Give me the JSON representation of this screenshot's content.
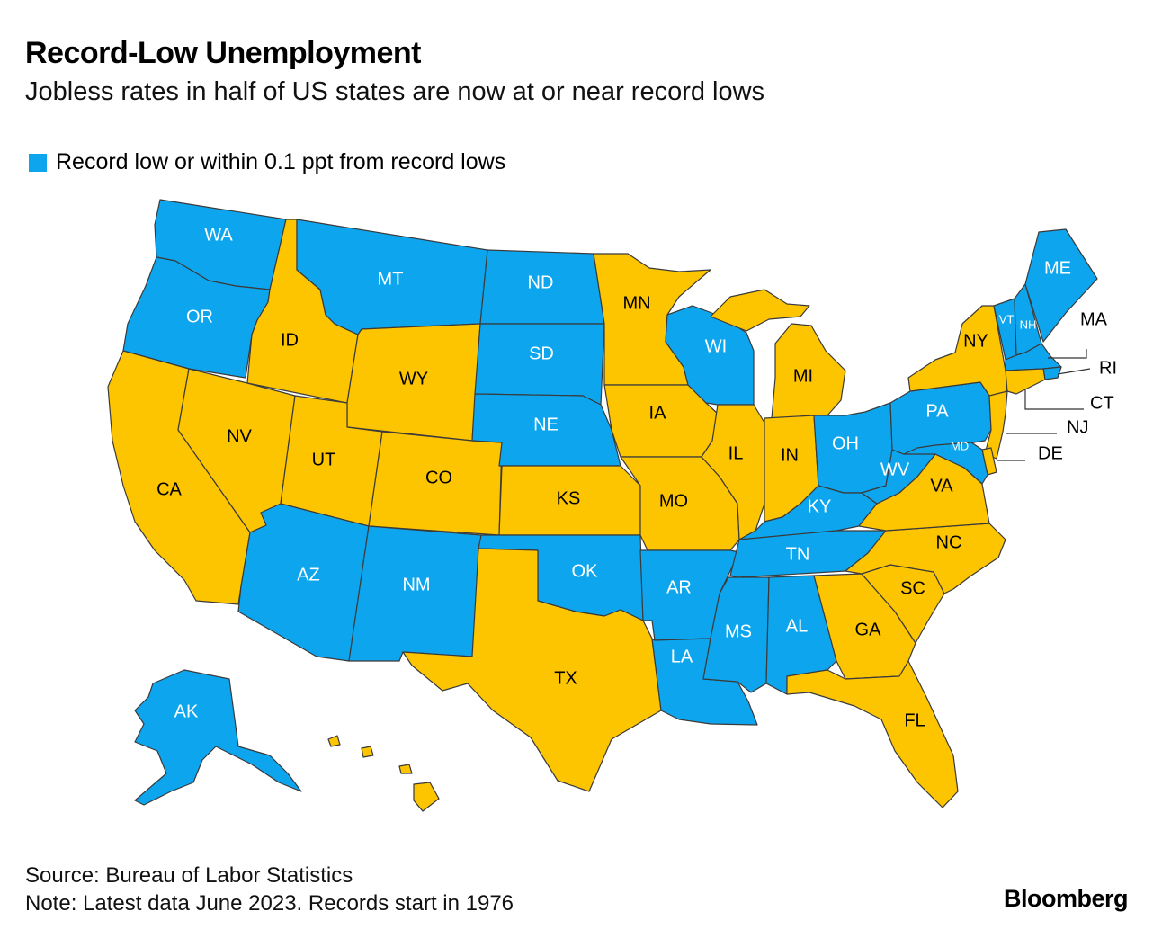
{
  "title": "Record-Low Unemployment",
  "subtitle": "Jobless rates in half of US states are now at or near record lows",
  "legend": {
    "label": "Record low or within 0.1 ppt from record lows"
  },
  "colors": {
    "record_low": "#0DA6EE",
    "other": "#FDC400"
  },
  "footer": {
    "source": "Source: Bureau of Labor Statistics",
    "note": "Note: Latest data June 2023. Records start in 1976"
  },
  "brand": "Bloomberg",
  "states": [
    {
      "code": "WA",
      "record_low": true
    },
    {
      "code": "OR",
      "record_low": true
    },
    {
      "code": "CA",
      "record_low": false
    },
    {
      "code": "ID",
      "record_low": false
    },
    {
      "code": "NV",
      "record_low": false
    },
    {
      "code": "MT",
      "record_low": true
    },
    {
      "code": "WY",
      "record_low": false
    },
    {
      "code": "UT",
      "record_low": false
    },
    {
      "code": "AZ",
      "record_low": true
    },
    {
      "code": "CO",
      "record_low": false
    },
    {
      "code": "NM",
      "record_low": true
    },
    {
      "code": "ND",
      "record_low": true
    },
    {
      "code": "SD",
      "record_low": true
    },
    {
      "code": "NE",
      "record_low": true
    },
    {
      "code": "KS",
      "record_low": false
    },
    {
      "code": "OK",
      "record_low": true
    },
    {
      "code": "TX",
      "record_low": false
    },
    {
      "code": "MN",
      "record_low": false
    },
    {
      "code": "IA",
      "record_low": false
    },
    {
      "code": "MO",
      "record_low": false
    },
    {
      "code": "AR",
      "record_low": true
    },
    {
      "code": "LA",
      "record_low": true
    },
    {
      "code": "WI",
      "record_low": true
    },
    {
      "code": "IL",
      "record_low": false
    },
    {
      "code": "MI",
      "record_low": false
    },
    {
      "code": "IN",
      "record_low": false
    },
    {
      "code": "OH",
      "record_low": true
    },
    {
      "code": "KY",
      "record_low": true
    },
    {
      "code": "TN",
      "record_low": true
    },
    {
      "code": "MS",
      "record_low": true
    },
    {
      "code": "AL",
      "record_low": true
    },
    {
      "code": "GA",
      "record_low": false
    },
    {
      "code": "FL",
      "record_low": false
    },
    {
      "code": "SC",
      "record_low": false
    },
    {
      "code": "NC",
      "record_low": false
    },
    {
      "code": "VA",
      "record_low": false
    },
    {
      "code": "WV",
      "record_low": true
    },
    {
      "code": "PA",
      "record_low": true
    },
    {
      "code": "NY",
      "record_low": false
    },
    {
      "code": "VT",
      "record_low": true
    },
    {
      "code": "NH",
      "record_low": true
    },
    {
      "code": "ME",
      "record_low": true
    },
    {
      "code": "MA",
      "record_low": true
    },
    {
      "code": "RI",
      "record_low": true
    },
    {
      "code": "CT",
      "record_low": false
    },
    {
      "code": "NJ",
      "record_low": false
    },
    {
      "code": "DE",
      "record_low": false
    },
    {
      "code": "MD",
      "record_low": true
    },
    {
      "code": "AK",
      "record_low": true
    },
    {
      "code": "HI",
      "record_low": false
    }
  ]
}
